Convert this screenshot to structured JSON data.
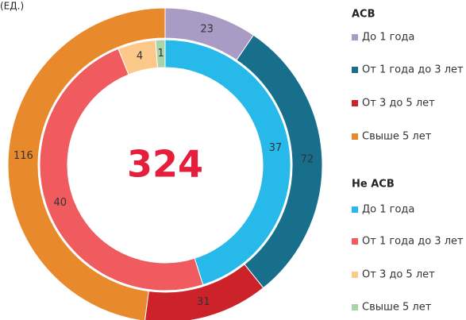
{
  "chart_data": {
    "type": "donut",
    "unit_label": "(ЕД.)",
    "total": 324,
    "categories": [
      "До 1 года",
      "От 1 года до 3 лет",
      "От 3 до 5 лет",
      "Свыше 5 лет"
    ],
    "series": [
      {
        "name": "АСВ",
        "values": [
          23,
          72,
          31,
          116
        ],
        "colors": [
          "#a99bc4",
          "#176f8b",
          "#cc2229",
          "#e8892b"
        ]
      },
      {
        "name": "Не АСВ",
        "values": [
          37,
          40,
          4,
          1
        ],
        "colors": [
          "#27b9ea",
          "#ef5b5e",
          "#fdc98a",
          "#a9d3a8"
        ]
      }
    ]
  }
}
